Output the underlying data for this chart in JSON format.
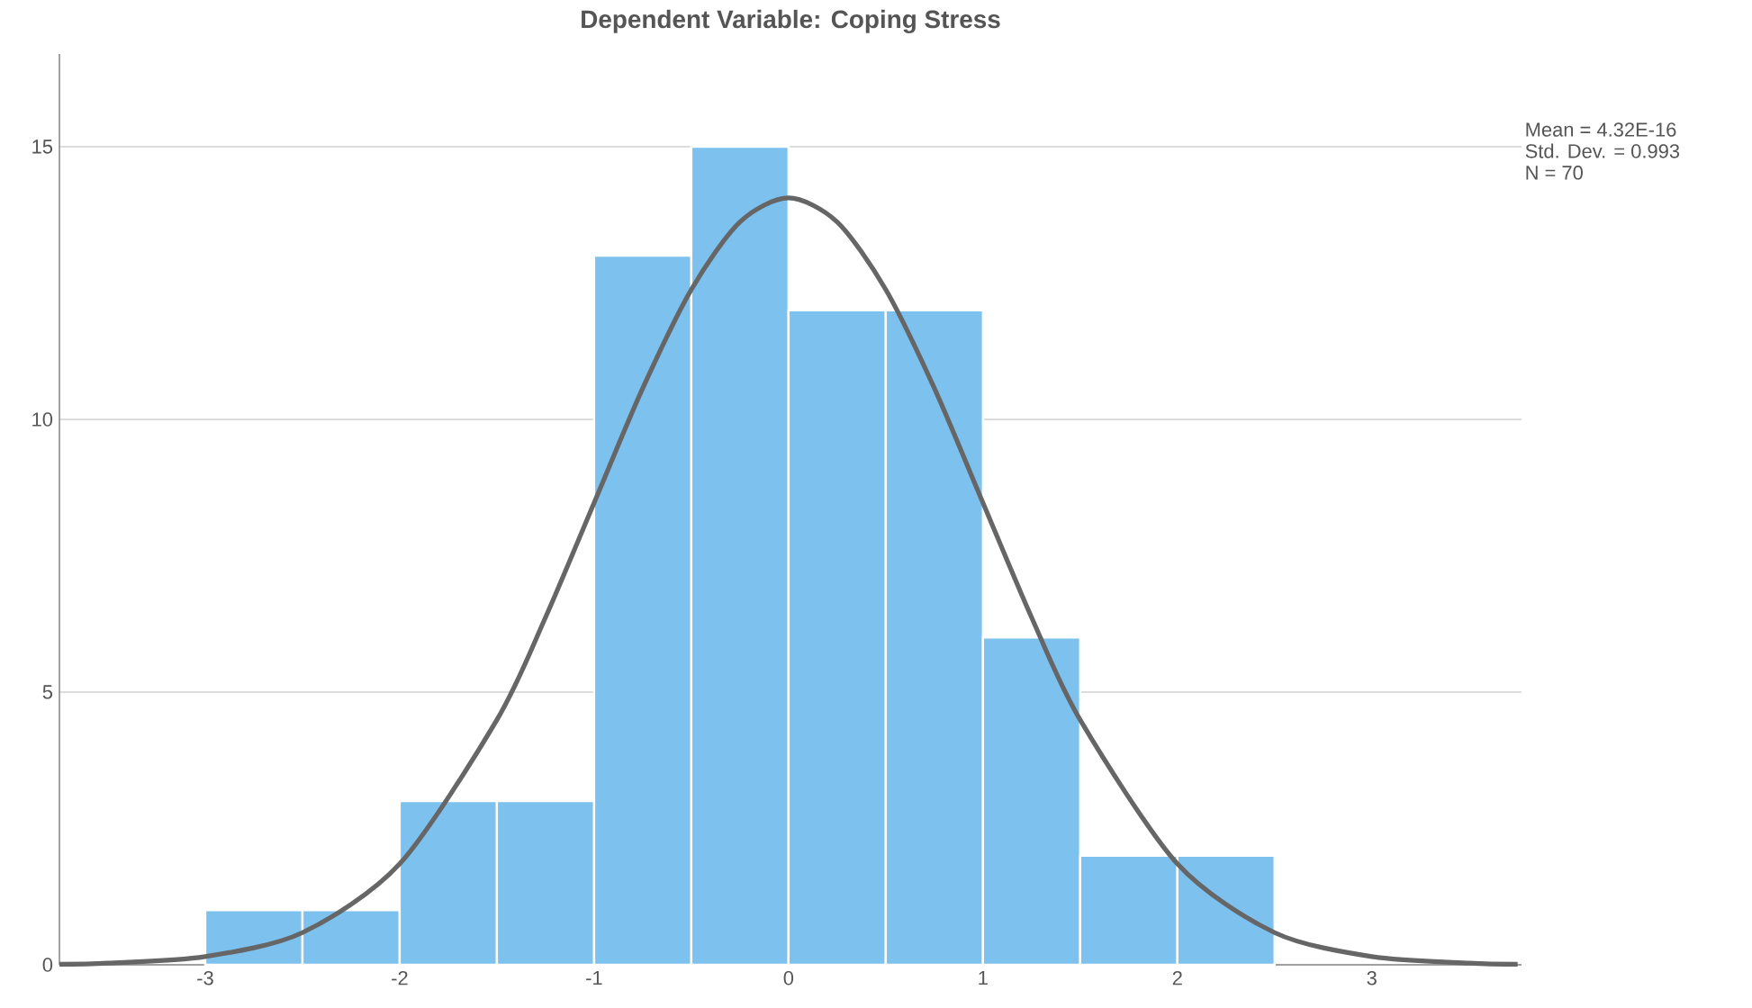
{
  "chart_data": {
    "type": "histogram",
    "title": "Dependent Variable: Coping Stress",
    "bins": [
      -3,
      -2.5,
      -2,
      -1.5,
      -1,
      -0.5,
      0,
      0.5,
      1,
      1.5,
      2,
      2.5
    ],
    "values": [
      1,
      1,
      3,
      3,
      13,
      15,
      12,
      12,
      6,
      2,
      2
    ],
    "color": "#7dc1ef",
    "series": [
      {
        "type": "line",
        "color": "#666666",
        "x": [
          -3.75,
          -3.5,
          -3,
          -2.5,
          -2,
          -1.5,
          -1.25,
          -1,
          -0.75,
          -0.5,
          -0.25,
          0,
          0.25,
          0.5,
          0.75,
          1,
          1.25,
          1.5,
          2,
          2.5,
          3,
          3.5,
          3.75
        ],
        "values": [
          0.01,
          0.03,
          0.15,
          0.59,
          1.85,
          4.49,
          6.37,
          8.47,
          10.57,
          12.38,
          13.62,
          14.06,
          13.62,
          12.38,
          10.57,
          8.47,
          6.37,
          4.49,
          1.85,
          0.59,
          0.15,
          0.03,
          0.01
        ]
      }
    ],
    "xlim": [
      -3.75,
      3.77
    ],
    "ylim": [
      0,
      16.7
    ],
    "xticks": [
      -3,
      -2,
      -1,
      0,
      1,
      2,
      3
    ],
    "yticks": [
      0,
      5,
      10,
      15
    ],
    "grid": "y",
    "marker": "none",
    "line_style": "solid",
    "annotations": [
      "Mean = 4.32E-16",
      "Std. Dev. = 0.993",
      "N = 70"
    ]
  }
}
